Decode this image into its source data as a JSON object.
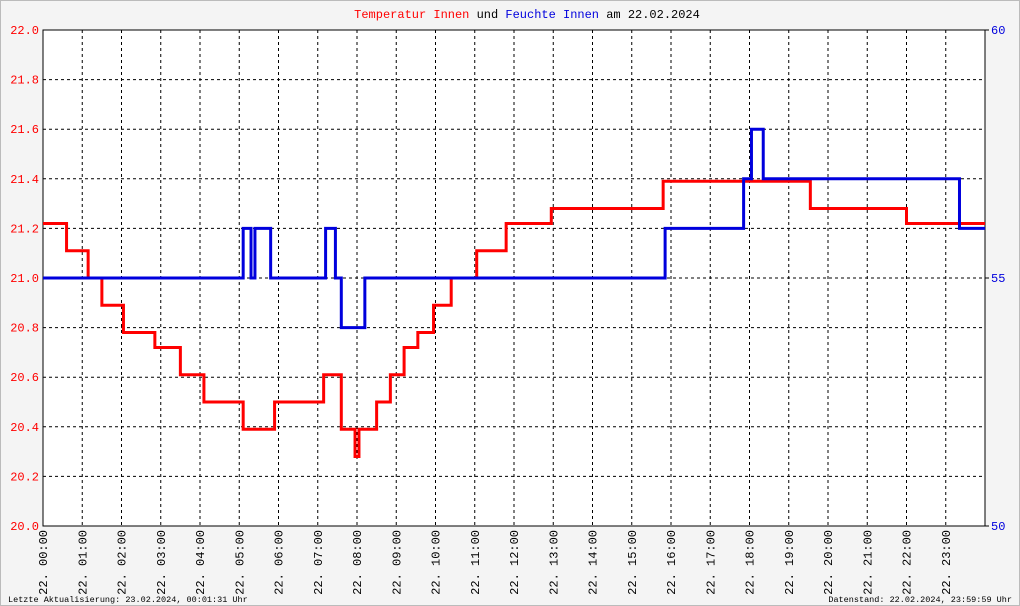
{
  "chart_data": {
    "type": "line",
    "title_parts": [
      "Temperatur Innen",
      "und",
      "Feuchte Innen",
      "am 22.02.2024"
    ],
    "footer_left": "Letzte Aktualisierung: 23.02.2024, 00:01:31 Uhr",
    "footer_right": "Datenstand: 22.02.2024, 23:59:59 Uhr",
    "xlim": [
      0,
      24
    ],
    "xticks": [
      {
        "value": 0,
        "label": "22. 00:00"
      },
      {
        "value": 1,
        "label": "22. 01:00"
      },
      {
        "value": 2,
        "label": "22. 02:00"
      },
      {
        "value": 3,
        "label": "22. 03:00"
      },
      {
        "value": 4,
        "label": "22. 04:00"
      },
      {
        "value": 5,
        "label": "22. 05:00"
      },
      {
        "value": 6,
        "label": "22. 06:00"
      },
      {
        "value": 7,
        "label": "22. 07:00"
      },
      {
        "value": 8,
        "label": "22. 08:00"
      },
      {
        "value": 9,
        "label": "22. 09:00"
      },
      {
        "value": 10,
        "label": "22. 10:00"
      },
      {
        "value": 11,
        "label": "22. 11:00"
      },
      {
        "value": 12,
        "label": "22. 12:00"
      },
      {
        "value": 13,
        "label": "22. 13:00"
      },
      {
        "value": 14,
        "label": "22. 14:00"
      },
      {
        "value": 15,
        "label": "22. 15:00"
      },
      {
        "value": 16,
        "label": "22. 16:00"
      },
      {
        "value": 17,
        "label": "22. 17:00"
      },
      {
        "value": 18,
        "label": "22. 18:00"
      },
      {
        "value": 19,
        "label": "22. 19:00"
      },
      {
        "value": 20,
        "label": "22. 20:00"
      },
      {
        "value": 21,
        "label": "22. 21:00"
      },
      {
        "value": 22,
        "label": "22. 22:00"
      },
      {
        "value": 23,
        "label": "22. 23:00"
      }
    ],
    "ylim": [
      20,
      22
    ],
    "yticks": [
      {
        "value": 20,
        "label": "20.0"
      },
      20.2,
      20.4,
      20.6,
      20.8,
      {
        "value": 21,
        "label": "21.0"
      },
      21.2,
      21.4,
      21.6,
      21.8,
      {
        "value": 22,
        "label": "22.0"
      }
    ],
    "y2lim": [
      50,
      60
    ],
    "y2ticks": [
      50,
      55,
      60
    ],
    "grid": true,
    "series": [
      {
        "name": "Temperatur Innen",
        "color": "#ff0000",
        "x": [
          0,
          0.6,
          0.6,
          1.15,
          1.15,
          1.5,
          1.5,
          2.05,
          2.05,
          2.85,
          2.85,
          3.5,
          3.5,
          4.1,
          4.1,
          5.1,
          5.1,
          5.9,
          5.9,
          7.15,
          7.15,
          7.6,
          7.6,
          7.95,
          7.95,
          8.05,
          8.05,
          8.5,
          8.5,
          8.85,
          8.85,
          9.2,
          9.2,
          9.55,
          9.55,
          9.95,
          9.95,
          10.4,
          10.4,
          11.05,
          11.05,
          11.8,
          11.8,
          12.95,
          12.95,
          15.8,
          15.8,
          19.55,
          19.55,
          22,
          22,
          24
        ],
        "values": [
          21.22,
          21.22,
          21.11,
          21.11,
          21,
          21,
          20.89,
          20.89,
          20.78,
          20.78,
          20.72,
          20.72,
          20.61,
          20.61,
          20.5,
          20.5,
          20.39,
          20.39,
          20.5,
          20.5,
          20.61,
          20.61,
          20.39,
          20.39,
          20.28,
          20.28,
          20.39,
          20.39,
          20.5,
          20.5,
          20.61,
          20.61,
          20.72,
          20.72,
          20.78,
          20.78,
          20.89,
          20.89,
          21,
          21,
          21.11,
          21.11,
          21.22,
          21.22,
          21.28,
          21.28,
          21.39,
          21.39,
          21.28,
          21.28,
          21.22,
          21.22
        ]
      },
      {
        "name": "Feuchte Innen",
        "color": "#0000dd",
        "axis": "y2",
        "x": [
          0,
          5.1,
          5.1,
          5.3,
          5.3,
          5.4,
          5.4,
          5.8,
          5.8,
          7.2,
          7.2,
          7.45,
          7.45,
          7.6,
          7.6,
          8.2,
          8.2,
          15.85,
          15.85,
          17.85,
          17.85,
          18.05,
          18.05,
          18.35,
          18.35,
          23.35,
          23.35,
          24
        ],
        "values": [
          55,
          55,
          56,
          56,
          55,
          55,
          56,
          56,
          55,
          55,
          56,
          56,
          55,
          55,
          54,
          54,
          55,
          55,
          56,
          56,
          57,
          57,
          58,
          58,
          57,
          57,
          56,
          56
        ]
      }
    ]
  }
}
